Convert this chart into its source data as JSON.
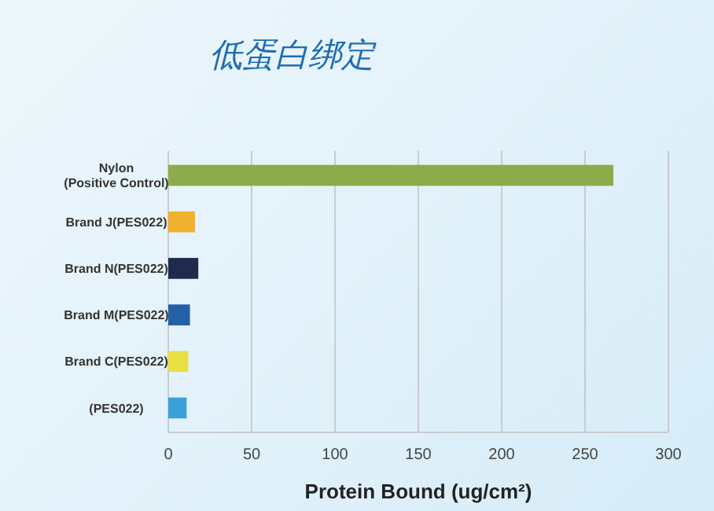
{
  "chart_data": {
    "type": "bar",
    "orientation": "horizontal",
    "title": "低蛋白绑定",
    "xlabel": "Protein Bound (ug/cm²)",
    "categories": [
      "Nylon\n(Positive Control)",
      "Brand J(PES022)",
      "Brand N(PES022)",
      "Brand M(PES022)",
      "Brand C(PES022)",
      "(PES022)"
    ],
    "values": [
      267,
      16,
      18,
      13,
      12,
      11
    ],
    "colors": [
      "#8cab4a",
      "#f0b030",
      "#1e2a4e",
      "#2360a6",
      "#e8e040",
      "#39a0d8"
    ],
    "xlim": [
      0,
      300
    ],
    "xticks": [
      0,
      50,
      100,
      150,
      200,
      250,
      300
    ],
    "grid": "x"
  }
}
